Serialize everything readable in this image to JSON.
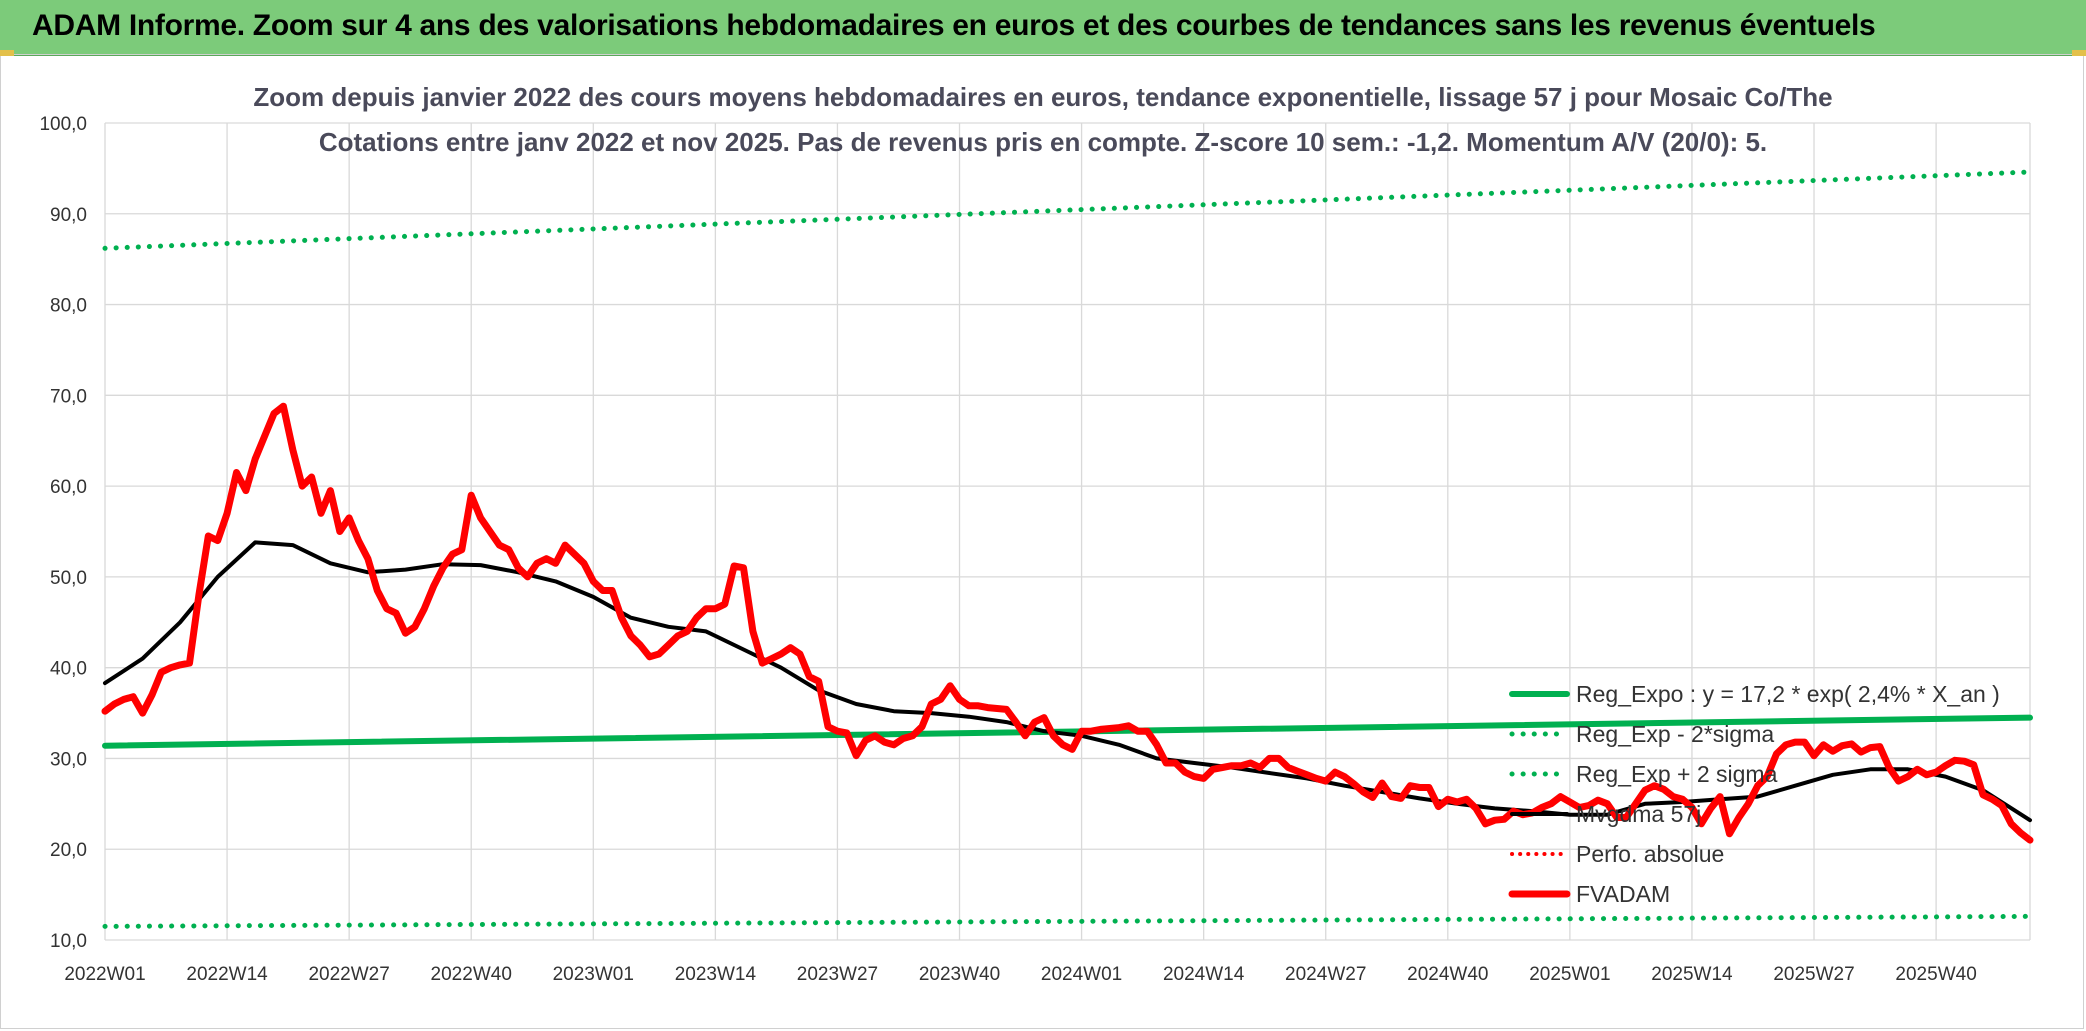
{
  "header": {
    "title": "ADAM Informe. Zoom sur 4 ans des valorisations hebdomadaires en euros et des courbes de tendances sans les revenus éventuels"
  },
  "chart_data": {
    "type": "line",
    "title_line1": "Zoom depuis janvier 2022 des cours moyens hebdomadaires en euros, tendance exponentielle, lissage 57 j pour Mosaic Co/The",
    "title_line2": "Cotations entre janv 2022 et nov 2025. Pas de revenus pris en compte. Z-score 10 sem.: -1,2. Momentum A/V (20/0): 5.",
    "ylim": [
      10,
      100
    ],
    "y_ticks": [
      "10,0",
      "20,0",
      "30,0",
      "40,0",
      "50,0",
      "60,0",
      "70,0",
      "80,0",
      "90,0",
      "100,0"
    ],
    "x_ticks": [
      "2022W01",
      "2022W14",
      "2022W27",
      "2022W40",
      "2023W01",
      "2023W14",
      "2023W27",
      "2023W40",
      "2024W01",
      "2024W14",
      "2024W27",
      "2024W40",
      "2025W01",
      "2025W14",
      "2025W27",
      "2025W40"
    ],
    "grid": true,
    "legend_position": "bottom-right",
    "colors": {
      "green": "#00b050",
      "red": "#ff0000",
      "black": "#000000"
    },
    "series": [
      {
        "name": "Reg_Expo : y = 17,2 * exp( 2,4% *  X_an )",
        "style": "solid-green",
        "points": [
          [
            0,
            31.4
          ],
          [
            205,
            34.5
          ]
        ]
      },
      {
        "name": "Reg_Exp - 2*sigma",
        "style": "dotted-green",
        "points": [
          [
            0,
            11.5
          ],
          [
            205,
            12.6
          ]
        ]
      },
      {
        "name": "Reg_Exp + 2 sigma",
        "style": "dotted-green",
        "points": [
          [
            0,
            86.2
          ],
          [
            205,
            94.6
          ]
        ]
      },
      {
        "name": "Mvgdma 57j",
        "style": "solid-black",
        "points": [
          [
            0,
            38.3
          ],
          [
            4,
            41
          ],
          [
            8,
            45
          ],
          [
            12,
            50
          ],
          [
            16,
            53.8
          ],
          [
            20,
            53.5
          ],
          [
            24,
            51.5
          ],
          [
            28,
            50.5
          ],
          [
            32,
            50.8
          ],
          [
            36,
            51.4
          ],
          [
            40,
            51.3
          ],
          [
            44,
            50.5
          ],
          [
            48,
            49.5
          ],
          [
            52,
            47.8
          ],
          [
            56,
            45.5
          ],
          [
            60,
            44.5
          ],
          [
            64,
            44
          ],
          [
            68,
            42
          ],
          [
            72,
            40
          ],
          [
            76,
            37.5
          ],
          [
            80,
            36
          ],
          [
            84,
            35.2
          ],
          [
            88,
            35
          ],
          [
            92,
            34.6
          ],
          [
            96,
            34
          ],
          [
            100,
            33
          ],
          [
            104,
            32.5
          ],
          [
            108,
            31.5
          ],
          [
            112,
            30
          ],
          [
            116,
            29.5
          ],
          [
            120,
            29
          ],
          [
            124,
            28.4
          ],
          [
            128,
            27.8
          ],
          [
            132,
            27
          ],
          [
            136,
            26.3
          ],
          [
            140,
            25.6
          ],
          [
            144,
            25
          ],
          [
            148,
            24.5
          ],
          [
            152,
            24.2
          ],
          [
            156,
            23.8
          ],
          [
            160,
            23.8
          ],
          [
            164,
            25
          ],
          [
            168,
            25.2
          ],
          [
            172,
            25.5
          ],
          [
            176,
            25.8
          ],
          [
            180,
            27
          ],
          [
            184,
            28.2
          ],
          [
            188,
            28.8
          ],
          [
            192,
            28.8
          ],
          [
            196,
            28
          ],
          [
            200,
            26.5
          ],
          [
            205,
            23.2
          ]
        ]
      },
      {
        "name": "Perfo. absolue",
        "style": "dotted-red",
        "points": []
      },
      {
        "name": "FVADAM",
        "style": "solid-red",
        "points": [
          [
            0,
            35.2
          ],
          [
            1,
            36
          ],
          [
            2,
            36.5
          ],
          [
            3,
            36.8
          ],
          [
            4,
            35
          ],
          [
            5,
            37
          ],
          [
            6,
            39.5
          ],
          [
            7,
            40
          ],
          [
            8,
            40.3
          ],
          [
            9,
            40.5
          ],
          [
            10,
            48
          ],
          [
            11,
            54.5
          ],
          [
            12,
            54
          ],
          [
            13,
            57
          ],
          [
            14,
            61.5
          ],
          [
            15,
            59.5
          ],
          [
            16,
            63
          ],
          [
            17,
            65.5
          ],
          [
            18,
            68
          ],
          [
            19,
            68.8
          ],
          [
            20,
            64
          ],
          [
            21,
            60
          ],
          [
            22,
            61
          ],
          [
            23,
            57
          ],
          [
            24,
            59.5
          ],
          [
            25,
            55
          ],
          [
            26,
            56.5
          ],
          [
            27,
            54
          ],
          [
            28,
            52
          ],
          [
            29,
            48.5
          ],
          [
            30,
            46.5
          ],
          [
            31,
            46
          ],
          [
            32,
            43.8
          ],
          [
            33,
            44.5
          ],
          [
            34,
            46.5
          ],
          [
            35,
            49
          ],
          [
            36,
            51
          ],
          [
            37,
            52.5
          ],
          [
            38,
            53
          ],
          [
            39,
            59
          ],
          [
            40,
            56.5
          ],
          [
            41,
            55
          ],
          [
            42,
            53.5
          ],
          [
            43,
            53
          ],
          [
            44,
            51
          ],
          [
            45,
            50
          ],
          [
            46,
            51.5
          ],
          [
            47,
            52
          ],
          [
            48,
            51.5
          ],
          [
            49,
            53.5
          ],
          [
            50,
            52.5
          ],
          [
            51,
            51.5
          ],
          [
            52,
            49.5
          ],
          [
            53,
            48.5
          ],
          [
            54,
            48.5
          ],
          [
            55,
            45.5
          ],
          [
            56,
            43.5
          ],
          [
            57,
            42.5
          ],
          [
            58,
            41.2
          ],
          [
            59,
            41.5
          ],
          [
            60,
            42.5
          ],
          [
            61,
            43.5
          ],
          [
            62,
            44
          ],
          [
            63,
            45.5
          ],
          [
            64,
            46.5
          ],
          [
            65,
            46.5
          ],
          [
            66,
            47
          ],
          [
            67,
            51.2
          ],
          [
            68,
            51
          ],
          [
            69,
            44
          ],
          [
            70,
            40.5
          ],
          [
            71,
            41
          ],
          [
            72,
            41.5
          ],
          [
            73,
            42.2
          ],
          [
            74,
            41.5
          ],
          [
            75,
            39
          ],
          [
            76,
            38.5
          ],
          [
            77,
            33.5
          ],
          [
            78,
            33
          ],
          [
            79,
            32.8
          ],
          [
            80,
            30.3
          ],
          [
            81,
            32
          ],
          [
            82,
            32.5
          ],
          [
            83,
            31.8
          ],
          [
            84,
            31.5
          ],
          [
            85,
            32.2
          ],
          [
            86,
            32.5
          ],
          [
            87,
            33.5
          ],
          [
            88,
            36
          ],
          [
            89,
            36.5
          ],
          [
            90,
            38
          ],
          [
            91,
            36.5
          ],
          [
            92,
            35.8
          ],
          [
            93,
            35.8
          ],
          [
            94,
            35.6
          ],
          [
            95,
            35.5
          ],
          [
            96,
            35.4
          ],
          [
            97,
            34
          ],
          [
            98,
            32.5
          ],
          [
            99,
            34
          ],
          [
            100,
            34.5
          ],
          [
            101,
            32.5
          ],
          [
            102,
            31.5
          ],
          [
            103,
            31
          ],
          [
            104,
            33
          ],
          [
            105,
            33
          ],
          [
            106,
            33.2
          ],
          [
            107,
            33.3
          ],
          [
            108,
            33.4
          ],
          [
            109,
            33.6
          ],
          [
            110,
            33
          ],
          [
            111,
            33
          ],
          [
            112,
            31.5
          ],
          [
            113,
            29.5
          ],
          [
            114,
            29.5
          ],
          [
            115,
            28.5
          ],
          [
            116,
            28
          ],
          [
            117,
            27.8
          ],
          [
            118,
            28.8
          ],
          [
            119,
            29
          ],
          [
            120,
            29.2
          ],
          [
            121,
            29.2
          ],
          [
            122,
            29.5
          ],
          [
            123,
            29
          ],
          [
            124,
            30
          ],
          [
            125,
            30
          ],
          [
            126,
            29
          ],
          [
            127,
            28.6
          ],
          [
            128,
            28.2
          ],
          [
            129,
            27.8
          ],
          [
            130,
            27.5
          ],
          [
            131,
            28.5
          ],
          [
            132,
            28
          ],
          [
            133,
            27.2
          ],
          [
            134,
            26.3
          ],
          [
            135,
            25.7
          ],
          [
            136,
            27.3
          ],
          [
            137,
            25.8
          ],
          [
            138,
            25.6
          ],
          [
            139,
            27
          ],
          [
            140,
            26.8
          ],
          [
            141,
            26.8
          ],
          [
            142,
            24.7
          ],
          [
            143,
            25.5
          ],
          [
            144,
            25.2
          ],
          [
            145,
            25.5
          ],
          [
            146,
            24.5
          ],
          [
            147,
            22.8
          ],
          [
            148,
            23.2
          ],
          [
            149,
            23.3
          ],
          [
            150,
            24.2
          ],
          [
            151,
            23.8
          ],
          [
            152,
            24
          ],
          [
            153,
            24.6
          ],
          [
            154,
            25
          ],
          [
            155,
            25.8
          ],
          [
            156,
            25.2
          ],
          [
            157,
            24.6
          ],
          [
            158,
            24.8
          ],
          [
            159,
            25.4
          ],
          [
            160,
            25
          ],
          [
            161,
            23.5
          ],
          [
            162,
            23.5
          ],
          [
            163,
            25
          ],
          [
            164,
            26.5
          ],
          [
            165,
            27
          ],
          [
            166,
            26.6
          ],
          [
            167,
            25.8
          ],
          [
            168,
            25.5
          ],
          [
            169,
            24.6
          ],
          [
            170,
            22.8
          ],
          [
            171,
            24.5
          ],
          [
            172,
            25.8
          ],
          [
            173,
            21.7
          ],
          [
            174,
            23.5
          ],
          [
            175,
            25
          ],
          [
            176,
            27
          ],
          [
            177,
            28
          ],
          [
            178,
            30.5
          ],
          [
            179,
            31.5
          ],
          [
            180,
            31.8
          ],
          [
            181,
            31.8
          ],
          [
            182,
            30.3
          ],
          [
            183,
            31.5
          ],
          [
            184,
            30.8
          ],
          [
            185,
            31.4
          ],
          [
            186,
            31.6
          ],
          [
            187,
            30.7
          ],
          [
            188,
            31.2
          ],
          [
            189,
            31.3
          ],
          [
            190,
            29
          ],
          [
            191,
            27.5
          ],
          [
            192,
            28
          ],
          [
            193,
            28.8
          ],
          [
            194,
            28.2
          ],
          [
            195,
            28.5
          ],
          [
            196,
            29.2
          ],
          [
            197,
            29.8
          ],
          [
            198,
            29.7
          ],
          [
            199,
            29.3
          ],
          [
            200,
            26
          ],
          [
            201,
            25.5
          ],
          [
            202,
            24.8
          ],
          [
            203,
            22.8
          ],
          [
            204,
            21.8
          ],
          [
            205,
            21
          ]
        ]
      }
    ]
  }
}
